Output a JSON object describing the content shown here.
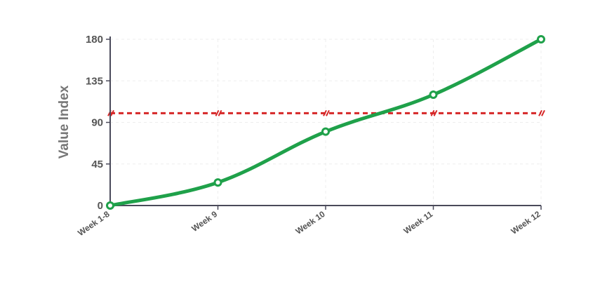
{
  "chart_data": {
    "type": "line",
    "ylabel": "Value Index",
    "xlabel": "",
    "categories": [
      "Week 1-8",
      "Week 9",
      "Week 10",
      "Week 11",
      "Week 12"
    ],
    "series": [
      {
        "values": [
          0,
          25,
          80,
          120,
          180
        ]
      }
    ],
    "reference_line": {
      "value": 100,
      "style": "dashed"
    },
    "ylim": [
      0,
      180
    ],
    "yticks": [
      0,
      45,
      90,
      135,
      180
    ],
    "grid": true,
    "legend": "none"
  },
  "colors": {
    "line": "#1fa14a",
    "reference": "#d62728",
    "axis": "#4a4a5a",
    "grid": "#eeeeee"
  }
}
